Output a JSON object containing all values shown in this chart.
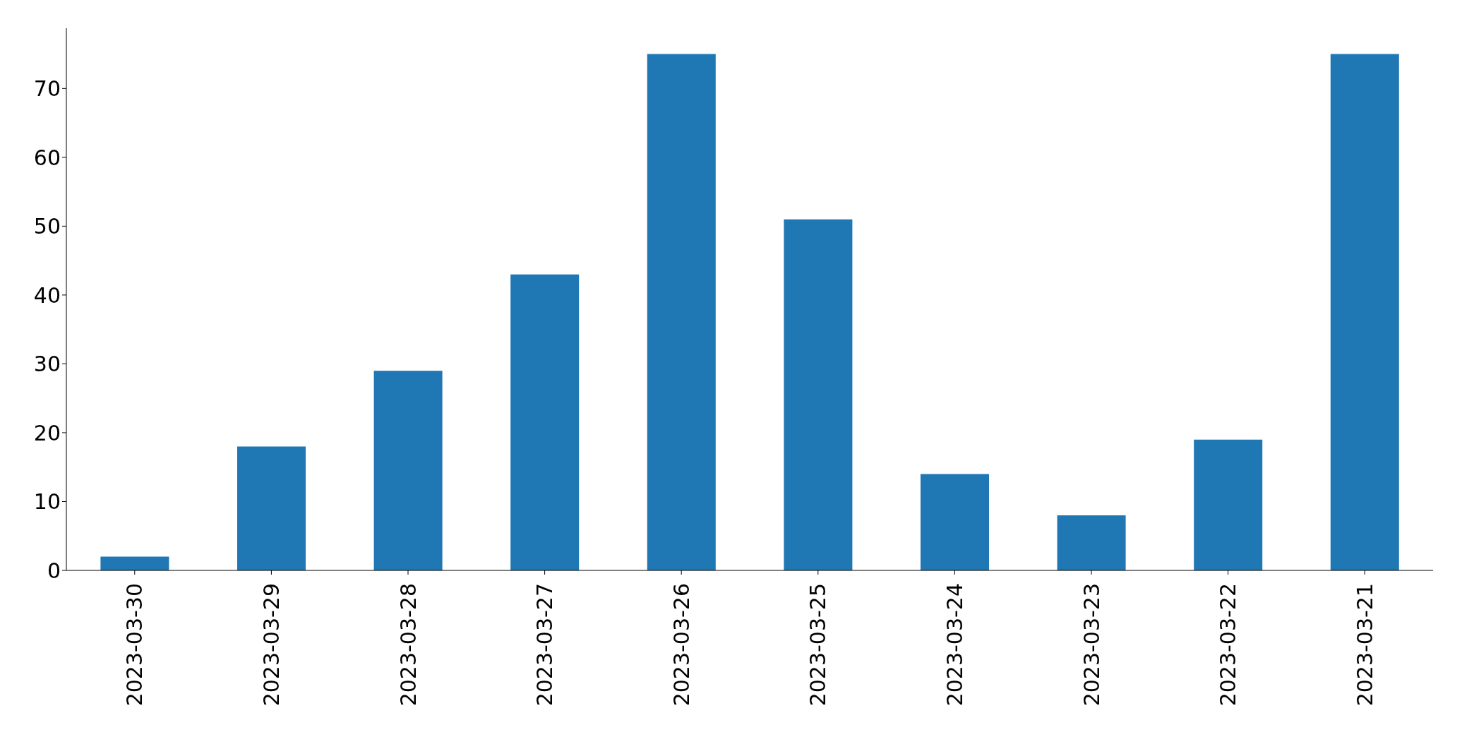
{
  "chart_data": {
    "type": "bar",
    "categories": [
      "2023-03-30",
      "2023-03-29",
      "2023-03-28",
      "2023-03-27",
      "2023-03-26",
      "2023-03-25",
      "2023-03-24",
      "2023-03-23",
      "2023-03-22",
      "2023-03-21"
    ],
    "values": [
      2,
      18,
      29,
      43,
      75,
      51,
      14,
      8,
      19,
      75
    ],
    "color": "#1f77b4",
    "ylim": [
      0,
      78.75
    ],
    "yticks": [
      0,
      10,
      20,
      30,
      40,
      50,
      60,
      70
    ],
    "grid": false,
    "legend": false
  }
}
